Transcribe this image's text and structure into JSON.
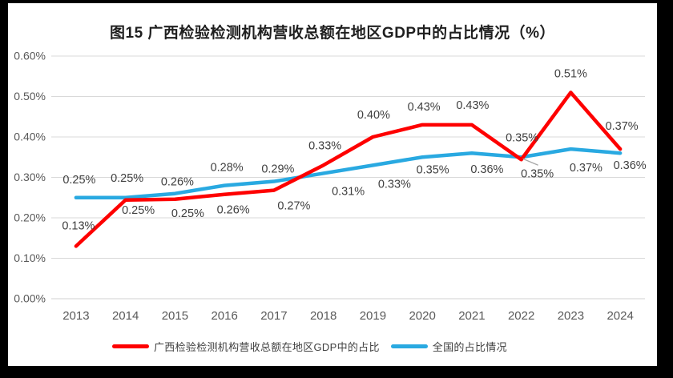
{
  "page": {
    "frame_color": "#000000",
    "panel_color": "#ffffff"
  },
  "colors": {
    "grid": "#D9D9D9",
    "baseline": "#D0D0D0",
    "axis_text": "#595959",
    "data_label": "#404040",
    "title_text": "#1F1F1F",
    "legend_text": "#404040",
    "leader_line": "#A6A6A6",
    "series_guangxi": "#FE0000",
    "series_national": "#29A9E1"
  },
  "chart_data": {
    "type": "line",
    "title": "图15 广西检验检测机构营收总额在地区GDP中的占比情况（%）",
    "categories": [
      "2013",
      "2014",
      "2015",
      "2016",
      "2017",
      "2018",
      "2019",
      "2020",
      "2021",
      "2022",
      "2023",
      "2024"
    ],
    "series": [
      {
        "name": "广西检验检测机构营收总额在地区GDP中的占比",
        "key": "guangxi",
        "color": "#FE0000",
        "values": [
          0.13,
          0.25,
          0.25,
          0.26,
          0.27,
          0.33,
          0.4,
          0.43,
          0.43,
          0.35,
          0.51,
          0.37
        ],
        "labels": [
          "0.13%",
          "0.25%",
          "0.25%",
          "0.26%",
          "0.27%",
          "0.33%",
          "0.40%",
          "0.43%",
          "0.43%",
          "0.35%",
          "0.51%",
          "0.37%"
        ]
      },
      {
        "name": "全国的占比情况",
        "key": "national",
        "color": "#29A9E1",
        "values": [
          0.25,
          0.25,
          0.26,
          0.28,
          0.29,
          0.31,
          0.33,
          0.35,
          0.36,
          0.35,
          0.37,
          0.36
        ],
        "labels": [
          "0.25%",
          "0.25%",
          "0.26%",
          "0.28%",
          "0.29%",
          "0.31%",
          "0.33%",
          "0.35%",
          "0.36%",
          "0.35%",
          "0.37%",
          "0.36%"
        ]
      }
    ],
    "y_ticks": [
      "0.00%",
      "0.10%",
      "0.20%",
      "0.30%",
      "0.40%",
      "0.50%",
      "0.60%"
    ],
    "ylim": [
      0,
      0.6
    ],
    "grid": "horizontal",
    "legend_position": "bottom",
    "data_labels_visible": true
  }
}
